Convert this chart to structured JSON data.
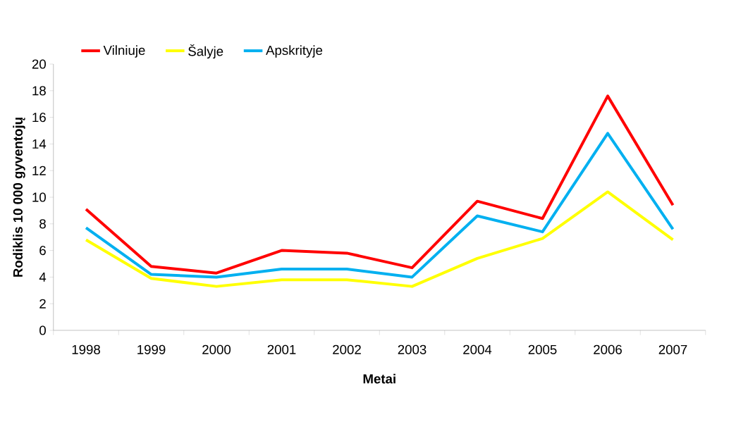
{
  "chart_data": {
    "type": "line",
    "xlabel": "Metai",
    "ylabel": "Rodiklis 10 000 gyventojų",
    "categories": [
      "1998",
      "1999",
      "2000",
      "2001",
      "2002",
      "2003",
      "2004",
      "2005",
      "2006",
      "2007"
    ],
    "series": [
      {
        "name": "Vilniuje",
        "color": "#ff0000",
        "values": [
          9.1,
          4.8,
          4.3,
          6.0,
          5.8,
          4.7,
          9.7,
          8.4,
          17.6,
          9.4
        ]
      },
      {
        "name": "Šalyje",
        "color": "#ffff00",
        "values": [
          6.8,
          3.9,
          3.3,
          3.8,
          3.8,
          3.3,
          5.4,
          6.9,
          10.4,
          6.8
        ]
      },
      {
        "name": "Apskrityje",
        "color": "#00b0f0",
        "values": [
          7.7,
          4.2,
          4.0,
          4.6,
          4.6,
          4.0,
          8.6,
          7.4,
          14.8,
          7.6
        ]
      }
    ],
    "ylim": [
      0,
      20
    ],
    "yticks": [
      0,
      2,
      4,
      6,
      8,
      10,
      12,
      14,
      16,
      18,
      20
    ],
    "grid": false,
    "legend": "top left",
    "marker": "none",
    "line_style": "solid"
  }
}
